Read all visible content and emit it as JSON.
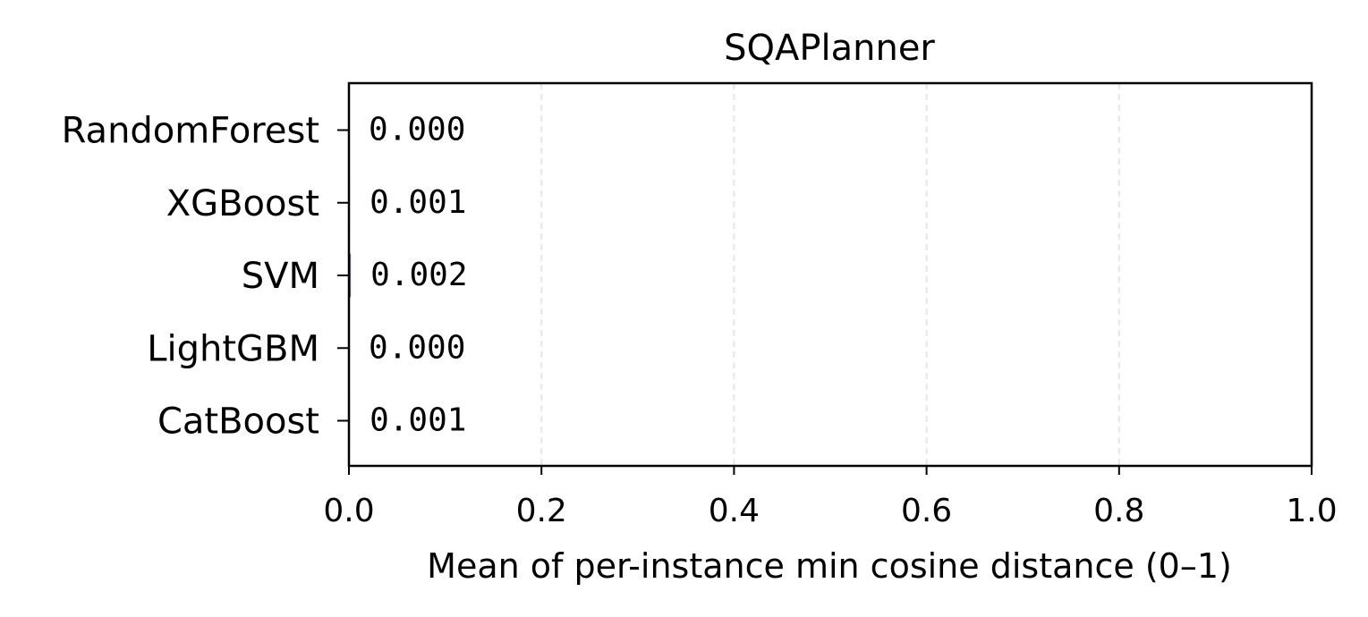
{
  "chart_data": {
    "type": "bar",
    "orientation": "horizontal",
    "title": "SQAPlanner",
    "xlabel": "Mean of per-instance min cosine distance (0–1)",
    "ylabel": "",
    "xlim": [
      0.0,
      1.0
    ],
    "xticks": [
      0.0,
      0.2,
      0.4,
      0.6,
      0.8,
      1.0
    ],
    "xtick_labels": [
      "0.0",
      "0.2",
      "0.4",
      "0.6",
      "0.8",
      "1.0"
    ],
    "categories": [
      "RandomForest",
      "XGBoost",
      "SVM",
      "LightGBM",
      "CatBoost"
    ],
    "values": [
      0.0,
      0.001,
      0.002,
      0.0,
      0.001
    ],
    "data_labels": [
      "0.000",
      "0.001",
      "0.002",
      "0.000",
      "0.001"
    ],
    "grid": {
      "x": true,
      "y": false,
      "style": "dashed"
    },
    "legend": "none",
    "colors": {
      "bar": "#4C72B0",
      "grid": "#e6e6e6",
      "axis": "#000000",
      "text": "#000000"
    }
  }
}
